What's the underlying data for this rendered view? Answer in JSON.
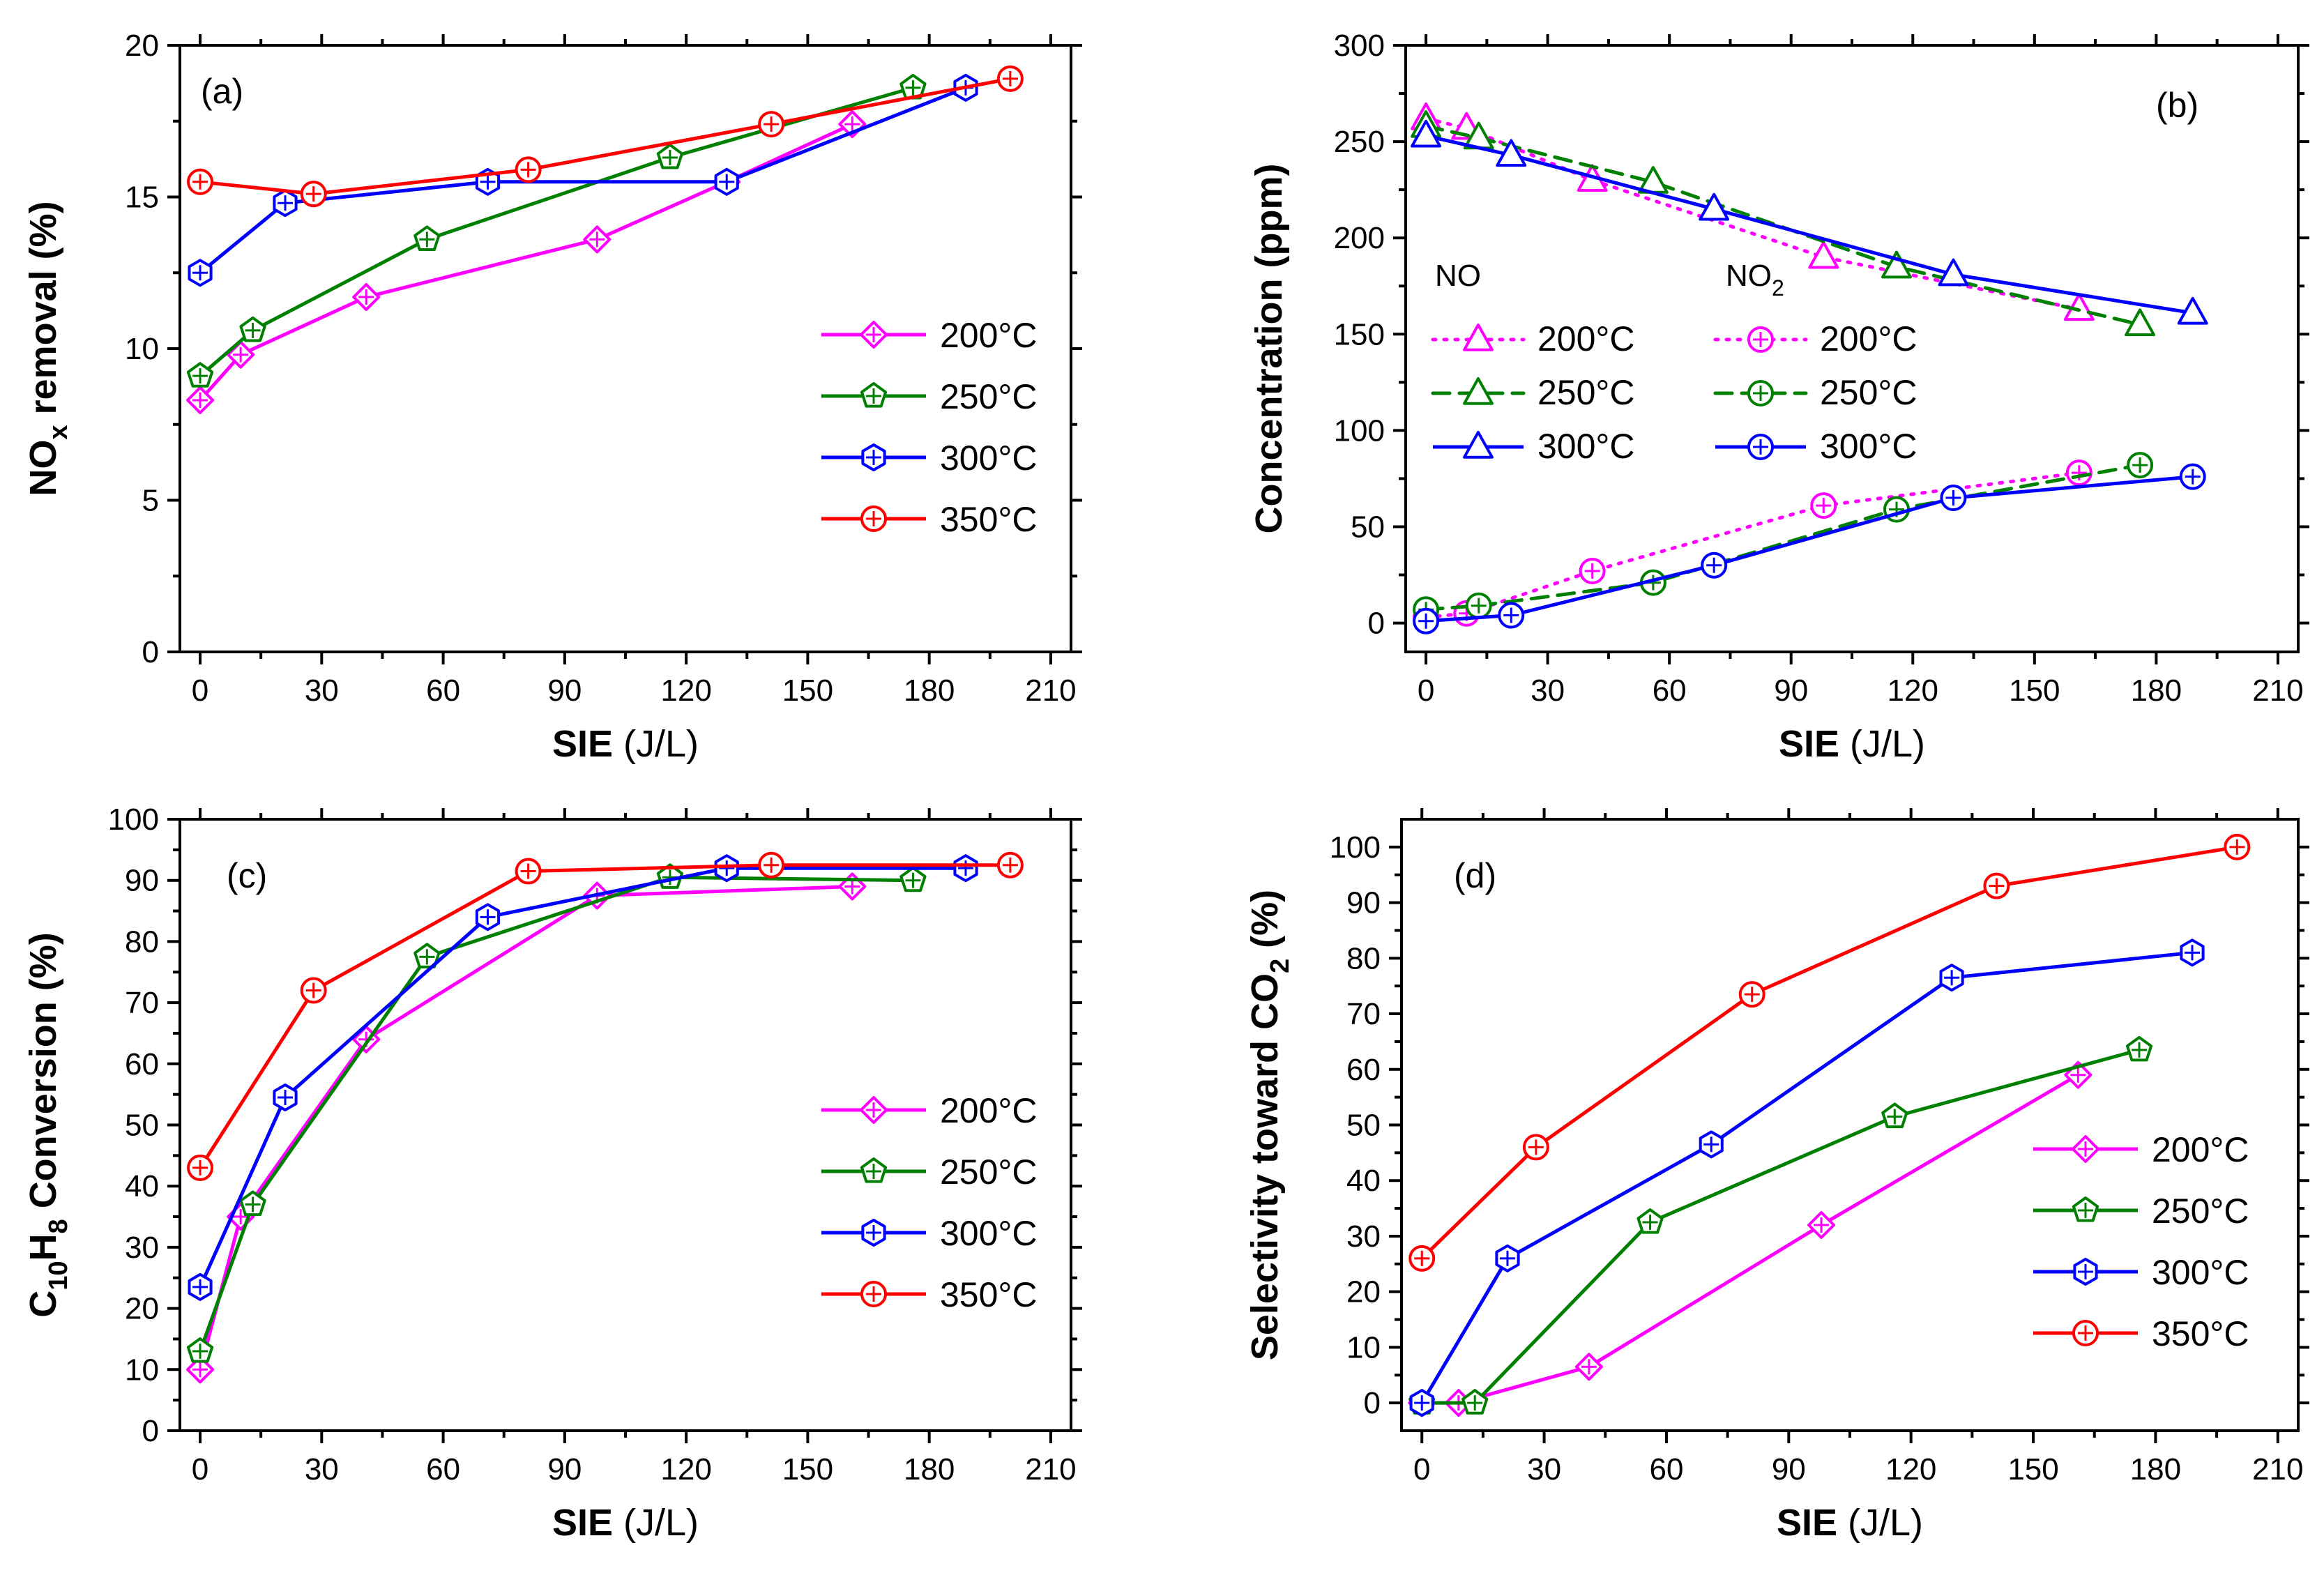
{
  "colors": {
    "t200": "#ff00ff",
    "t250": "#008000",
    "t300": "#0000ff",
    "t350": "#ff0000"
  },
  "chart_data": [
    {
      "id": "a",
      "type": "line",
      "label": "(a)",
      "xlabel": "SIE",
      "xunit": "(J/L)",
      "ylabel": "NO",
      "ysub": "x",
      "yrest": " removal (%)",
      "xlim": [
        -5,
        215
      ],
      "ylim": [
        0,
        20
      ],
      "xticks": [
        0,
        30,
        60,
        90,
        120,
        150,
        180,
        210
      ],
      "xtick_labels": [
        "0",
        "30",
        "60",
        "90",
        "120",
        "150",
        "180",
        "210"
      ],
      "yticks": [
        0,
        5,
        10,
        15,
        20
      ],
      "ytick_labels": [
        "0",
        "5",
        "10",
        "15",
        "20"
      ],
      "legend": [
        "200°C",
        "250°C",
        "300°C",
        "350°C"
      ],
      "series": [
        {
          "name": "200°C",
          "color": "#ff00ff",
          "marker": "diamond",
          "x": [
            0,
            10,
            41,
            98,
            130,
            161
          ],
          "y": [
            8.3,
            9.8,
            11.7,
            13.6,
            15.5,
            17.4
          ]
        },
        {
          "name": "250°C",
          "color": "#008000",
          "marker": "pentagon",
          "x": [
            0,
            13,
            56,
            116,
            176
          ],
          "y": [
            9.1,
            10.6,
            13.6,
            16.3,
            18.6
          ]
        },
        {
          "name": "300°C",
          "color": "#0000ff",
          "marker": "hexagon",
          "x": [
            0,
            21,
            71,
            130,
            189
          ],
          "y": [
            12.5,
            14.8,
            15.5,
            15.5,
            18.6
          ]
        },
        {
          "name": "350°C",
          "color": "#ff0000",
          "marker": "circle",
          "x": [
            0,
            28,
            81,
            141,
            200
          ],
          "y": [
            15.5,
            15.1,
            15.9,
            17.4,
            18.9
          ]
        }
      ]
    },
    {
      "id": "b",
      "type": "line",
      "label": "(b)",
      "xlabel": "SIE",
      "xunit": "(J/L)",
      "ylabel": "Concentration",
      "ysub": "",
      "yrest": " (ppm)",
      "xlim": [
        -5,
        215
      ],
      "ylim": [
        -15,
        300
      ],
      "xticks": [
        0,
        30,
        60,
        90,
        120,
        150,
        180,
        210
      ],
      "xtick_labels": [
        "0",
        "30",
        "60",
        "90",
        "120",
        "150",
        "180",
        "210"
      ],
      "yticks": [
        0,
        50,
        100,
        150,
        200,
        250,
        300
      ],
      "ytick_labels": [
        "0",
        "50",
        "100",
        "150",
        "200",
        "250",
        "300"
      ],
      "legend_groups": [
        {
          "header": "NO",
          "header_sub": "",
          "entries": [
            "200°C",
            "250°C",
            "300°C"
          ]
        },
        {
          "header": "NO",
          "header_sub": "2",
          "entries": [
            "200°C",
            "250°C",
            "300°C"
          ]
        }
      ],
      "series": [
        {
          "name": "NO 200°C",
          "color": "#ff00ff",
          "marker": "triangle",
          "dash": "dotted",
          "x": [
            0,
            10,
            41,
            98,
            161
          ],
          "y": [
            262,
            257,
            230,
            190,
            163
          ]
        },
        {
          "name": "NO 250°C",
          "color": "#008000",
          "marker": "triangle",
          "dash": "dashed",
          "x": [
            0,
            13,
            56,
            116,
            176
          ],
          "y": [
            258,
            252,
            229,
            185,
            155
          ]
        },
        {
          "name": "NO 300°C",
          "color": "#0000ff",
          "marker": "triangle",
          "dash": "solid",
          "x": [
            0,
            21,
            71,
            130,
            189
          ],
          "y": [
            253,
            243,
            215,
            181,
            161
          ]
        },
        {
          "name": "NO2 200°C",
          "color": "#ff00ff",
          "marker": "circle",
          "dash": "dotted",
          "x": [
            0,
            10,
            41,
            98,
            161
          ],
          "y": [
            3,
            5,
            27,
            61,
            78
          ]
        },
        {
          "name": "NO2 250°C",
          "color": "#008000",
          "marker": "circle",
          "dash": "dashed",
          "x": [
            0,
            13,
            56,
            116,
            176
          ],
          "y": [
            7,
            9,
            21,
            59,
            82
          ]
        },
        {
          "name": "NO2 300°C",
          "color": "#0000ff",
          "marker": "circle",
          "dash": "solid",
          "x": [
            0,
            21,
            71,
            130,
            189
          ],
          "y": [
            1,
            4,
            30,
            65,
            76
          ]
        }
      ]
    },
    {
      "id": "c",
      "type": "line",
      "label": "(c)",
      "xlabel": "SIE",
      "xunit": "(J/L)",
      "ylabel": "C",
      "ysub": "10",
      "ylabel2": "H",
      "ysub2": "8",
      "yrest": " Conversion (%)",
      "xlim": [
        -5,
        215
      ],
      "ylim": [
        0,
        100
      ],
      "xticks": [
        0,
        30,
        60,
        90,
        120,
        150,
        180,
        210
      ],
      "xtick_labels": [
        "0",
        "30",
        "60",
        "90",
        "120",
        "150",
        "180",
        "210"
      ],
      "yticks": [
        0,
        10,
        20,
        30,
        40,
        50,
        60,
        70,
        80,
        90,
        100
      ],
      "ytick_labels": [
        "0",
        "10",
        "20",
        "30",
        "40",
        "50",
        "60",
        "70",
        "80",
        "90",
        "100"
      ],
      "legend": [
        "200°C",
        "250°C",
        "300°C",
        "350°C"
      ],
      "series": [
        {
          "name": "200°C",
          "color": "#ff00ff",
          "marker": "diamond",
          "x": [
            0,
            10,
            41,
            98,
            161
          ],
          "y": [
            10,
            35,
            64,
            87.5,
            89
          ]
        },
        {
          "name": "250°C",
          "color": "#008000",
          "marker": "pentagon",
          "x": [
            0,
            13,
            56,
            116,
            176
          ],
          "y": [
            13,
            37,
            77.5,
            90.5,
            90
          ]
        },
        {
          "name": "300°C",
          "color": "#0000ff",
          "marker": "hexagon",
          "x": [
            0,
            21,
            71,
            130,
            189
          ],
          "y": [
            23.5,
            54.5,
            84,
            92,
            92
          ]
        },
        {
          "name": "350°C",
          "color": "#ff0000",
          "marker": "circle",
          "x": [
            0,
            28,
            81,
            141,
            200
          ],
          "y": [
            43,
            72,
            91.5,
            92.5,
            92.5
          ]
        }
      ]
    },
    {
      "id": "d",
      "type": "line",
      "label": "(d)",
      "xlabel": "SIE",
      "xunit": "(J/L)",
      "ylabel": "Selectivity toward CO",
      "ysub": "2",
      "yrest": " (%)",
      "xlim": [
        -5,
        215
      ],
      "ylim": [
        -5,
        105
      ],
      "xticks": [
        0,
        30,
        60,
        90,
        120,
        150,
        180,
        210
      ],
      "xtick_labels": [
        "0",
        "30",
        "60",
        "90",
        "120",
        "150",
        "180",
        "210"
      ],
      "yticks": [
        0,
        10,
        20,
        30,
        40,
        50,
        60,
        70,
        80,
        90,
        100
      ],
      "ytick_labels": [
        "0",
        "10",
        "20",
        "30",
        "40",
        "50",
        "60",
        "70",
        "80",
        "90",
        "100"
      ],
      "legend": [
        "200°C",
        "250°C",
        "300°C",
        "350°C"
      ],
      "series": [
        {
          "name": "200°C",
          "color": "#ff00ff",
          "marker": "diamond",
          "x": [
            0,
            9,
            41,
            98,
            161
          ],
          "y": [
            0,
            0,
            6.5,
            32,
            59
          ]
        },
        {
          "name": "250°C",
          "color": "#008000",
          "marker": "pentagon",
          "x": [
            0,
            13,
            56,
            116,
            176
          ],
          "y": [
            0,
            0,
            32.5,
            51.5,
            63.5
          ]
        },
        {
          "name": "300°C",
          "color": "#0000ff",
          "marker": "hexagon",
          "x": [
            0,
            21,
            71,
            130,
            189
          ],
          "y": [
            0,
            26,
            46.5,
            76.5,
            81
          ]
        },
        {
          "name": "350°C",
          "color": "#ff0000",
          "marker": "circle",
          "x": [
            0,
            28,
            81,
            141,
            200
          ],
          "y": [
            26,
            46,
            73.5,
            93,
            100
          ]
        }
      ]
    }
  ]
}
